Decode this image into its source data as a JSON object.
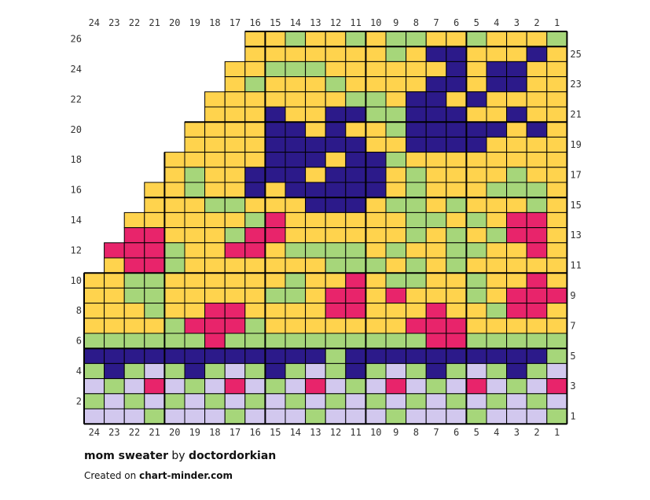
{
  "chart_data": {
    "type": "heatmap",
    "columns_label_order": [
      24,
      23,
      22,
      21,
      20,
      19,
      18,
      17,
      16,
      15,
      14,
      13,
      12,
      11,
      10,
      9,
      8,
      7,
      6,
      5,
      4,
      3,
      2,
      1
    ],
    "top_ticks": [
      "24",
      "23",
      "22",
      "21",
      "20",
      "19",
      "18",
      "17",
      "16",
      "15",
      "14",
      "13",
      "12",
      "11",
      "10",
      "9",
      "8",
      "7",
      "6",
      "5",
      "4",
      "3",
      "2",
      "1"
    ],
    "bottom_ticks": [
      "24",
      "23",
      "22",
      "21",
      "20",
      "19",
      "18",
      "17",
      "16",
      "15",
      "14",
      "13",
      "12",
      "11",
      "10",
      "9",
      "8",
      "7",
      "6",
      "5",
      "4",
      "3",
      "2",
      "1"
    ],
    "left_row_ticks": [
      "26",
      "24",
      "22",
      "20",
      "18",
      "16",
      "14",
      "12",
      "10",
      "8",
      "6",
      "4",
      "2"
    ],
    "right_row_ticks": [
      "25",
      "23",
      "21",
      "19",
      "17",
      "15",
      "13",
      "11",
      "9",
      "7",
      "5",
      "3",
      "1"
    ],
    "palette": {
      "Y": "#ffd34d",
      "G": "#a6d67a",
      "N": "#2c1a8a",
      "P": "#e8246b",
      "L": "#d2c8ee",
      "E": ""
    },
    "rows_top_to_bottom": [
      "........YYGYYGYGGYYGYYYG",
      "........YYYYYYYGYNNYYYNY",
      ".......YYGGGYYYYYYNYNNYY",
      ".......YGYYYGYYYYNNYNNYY",
      "......YYYYYYYGGYNNYNYYYY",
      "......YYYNYYNNGGNNNYYNYY",
      ".....YYYYNNYNYYGNNNNNYNY",
      ".....YYYYNNNNNYYNNNNYYYY",
      "....YYYYYNNNYNNGYYYYYYYY",
      "....YGYYNNNYNNNYGYYYYGYY",
      "...YYGYYNYNNNNNYGYYYGGGY",
      "...YYYGGYYYNNNYGGYGYYYGY",
      "..YYYYYYGPYYYYYYGGYGYPPY",
      "..PPYYYGPPYYYYYYGYGYGPPY",
      ".PPPGYYPPYGGGGYGYYGGYYPY",
      ".YPPGYYYYYYYGGGYGYGYYYYY",
      "YYGGYYYYYYGYYPYGGYYGYYPY",
      "YYGGYYYYYGGYPPYPYYYGYPPP",
      "YYYGYYPPYYYYPPYYYPYYGPPY",
      "YYYYGPPPGYYYYYYYPPPYYYYY",
      "GGGGGGPGGGGGGGGGGPPGGGGG",
      "NNNNNNNNNNNNGNNNNNNNNNNG",
      "GNGLGNGLGNGLGNGLGNGLGNGL",
      "LGLPLGLPLGLPLGLPLGLPLGLP",
      "GLGLGLGLGLGLGLGLGLGLGLGL",
      "LLLGLLLGLLLGLLLGLLLGLLLG"
    ]
  },
  "footer": {
    "pattern_name": "mom sweater",
    "by_word": "by",
    "author": "doctordorkian",
    "created_prefix": "Created on",
    "site": "chart-minder.com"
  }
}
